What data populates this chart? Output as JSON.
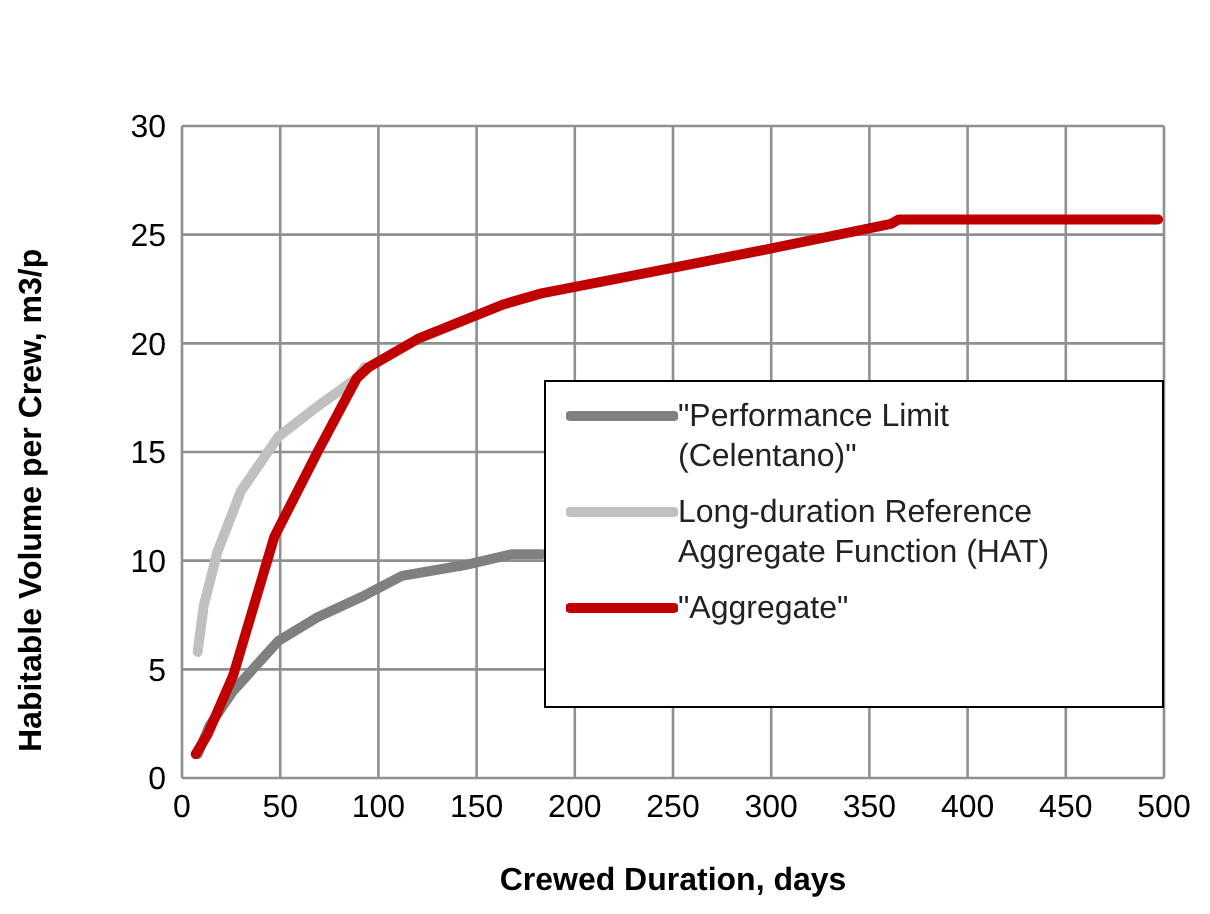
{
  "chart_data": {
    "type": "line",
    "xlabel": "Crewed Duration, days",
    "ylabel": "Habitable Volume per Crew, m3/p",
    "xlim": [
      0,
      500
    ],
    "xticks": [
      0,
      50,
      100,
      150,
      200,
      250,
      300,
      350,
      400,
      450,
      500
    ],
    "ylim": [
      0,
      30
    ],
    "yticks": [
      0,
      5,
      10,
      15,
      20,
      25,
      30
    ],
    "grid": true,
    "legend": "right",
    "marker": "none",
    "line_style": "solid",
    "series": [
      {
        "name": "\"Performance Limit (Celentano)\"",
        "color": "#808080",
        "x": [
          8,
          14,
          26,
          49,
          69,
          93,
          112,
          144,
          168,
          183
        ],
        "values": [
          1.1,
          2.4,
          4.0,
          6.3,
          7.4,
          8.4,
          9.3,
          9.8,
          10.3,
          10.3
        ]
      },
      {
        "name": "Long-duration Reference Aggregate Function (HAT)",
        "color": "#c0c0c0",
        "x": [
          8,
          11,
          18,
          30,
          49,
          69,
          89,
          93
        ],
        "values": [
          5.8,
          7.9,
          10.4,
          13.2,
          15.7,
          17.1,
          18.4,
          18.9
        ]
      },
      {
        "name": "\"Aggregate\"",
        "color": "#c00000",
        "x": [
          7,
          13,
          26,
          47,
          69,
          89,
          95,
          120,
          164,
          183,
          223,
          302,
          361,
          365,
          497
        ],
        "values": [
          1.1,
          2.0,
          4.7,
          11.1,
          15.0,
          18.4,
          18.9,
          20.2,
          21.8,
          22.3,
          23.0,
          24.4,
          25.5,
          25.7,
          25.7
        ]
      }
    ]
  }
}
